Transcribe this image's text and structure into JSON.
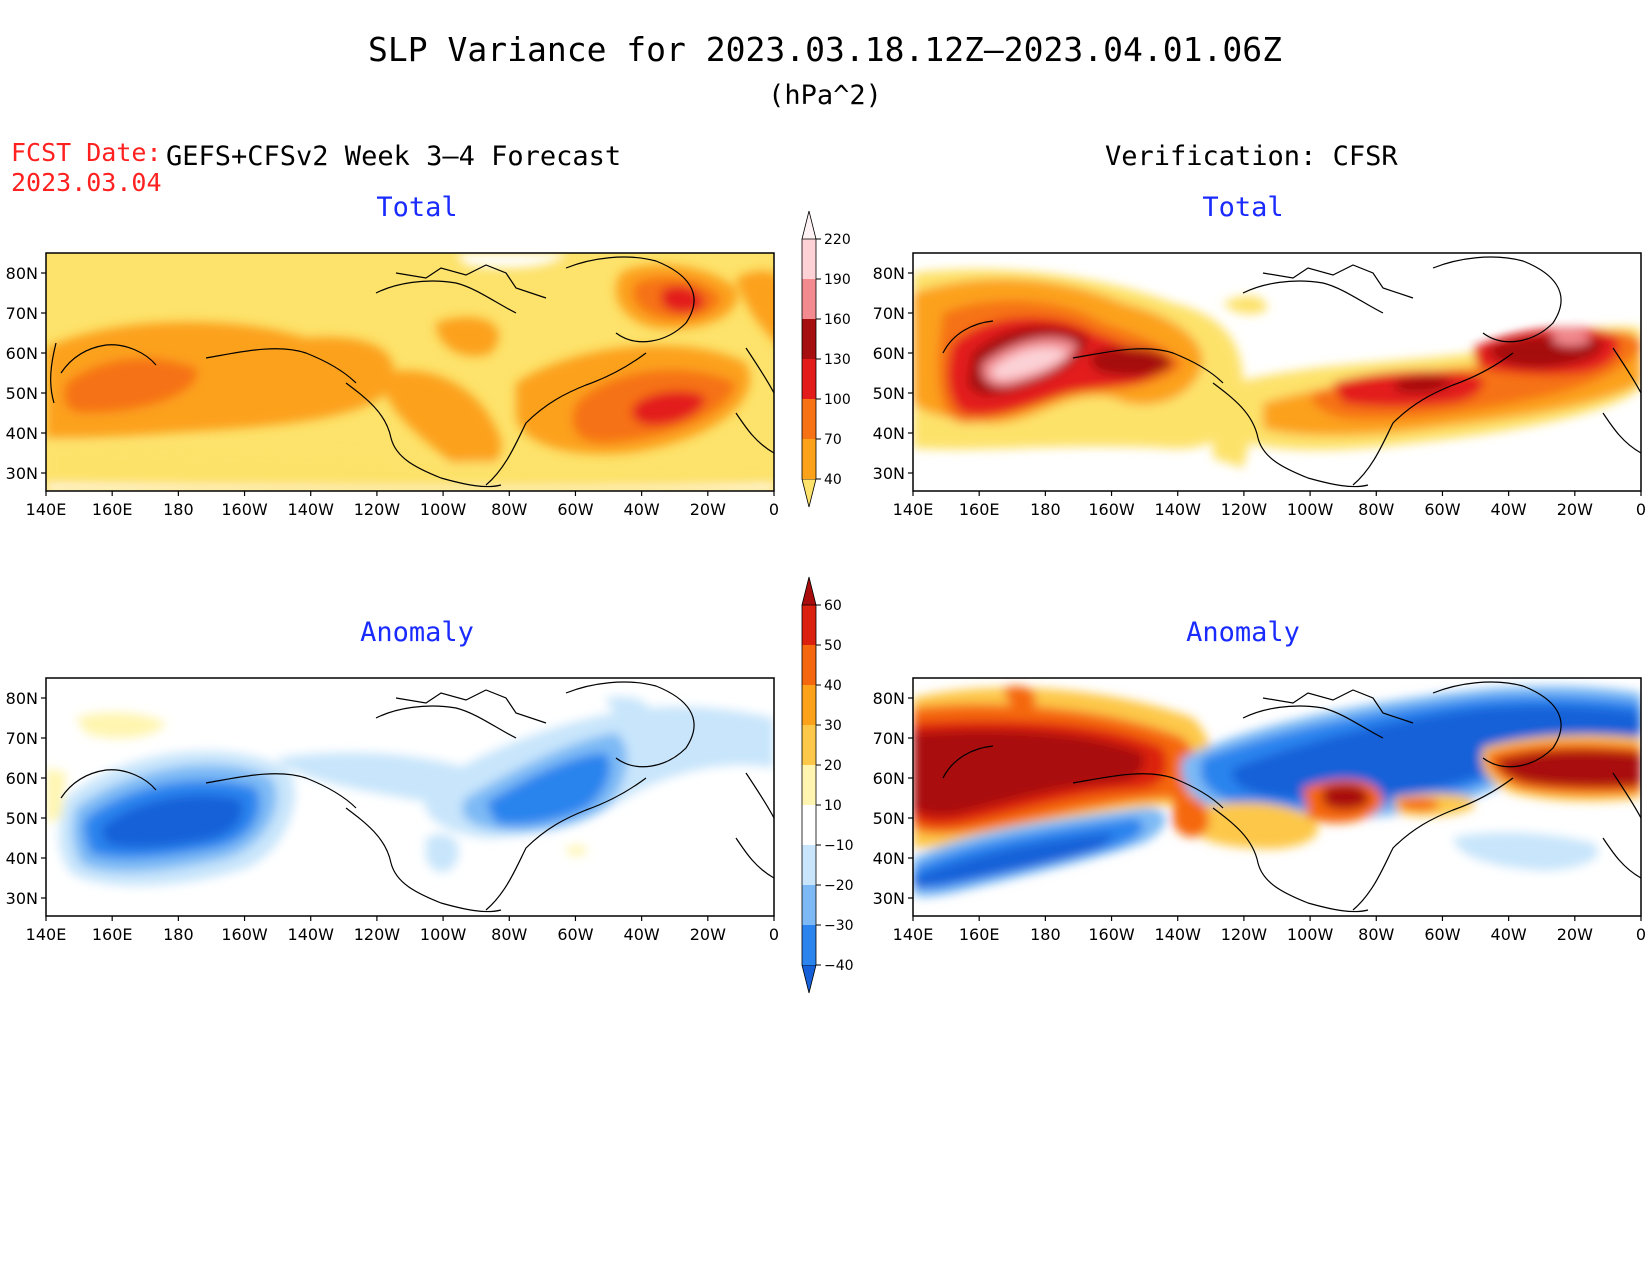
{
  "title": "SLP Variance for 2023.03.18.12Z–2023.04.01.06Z",
  "units": "(hPa^2)",
  "fcst_label": "FCST Date:",
  "fcst_value": "2023.03.04",
  "left_header": "GEFS+CFSv2 Week 3–4 Forecast",
  "right_header": "Verification: CFSR",
  "panels": [
    {
      "title": "Total"
    },
    {
      "title": "Total"
    },
    {
      "title": "Anomaly"
    },
    {
      "title": "Anomaly"
    }
  ],
  "lat_ticks": [
    "80N",
    "70N",
    "60N",
    "50N",
    "40N",
    "30N"
  ],
  "lon_ticks": [
    "140E",
    "160E",
    "180",
    "160W",
    "140W",
    "120W",
    "100W",
    "80W",
    "60W",
    "40W",
    "20W",
    "0"
  ],
  "colorbar_total": {
    "labels": [
      "40",
      "70",
      "100",
      "130",
      "160",
      "190",
      "220"
    ],
    "colors": [
      "#fde26b",
      "#fca11a",
      "#f67214",
      "#e31b1b",
      "#a50f0f",
      "#f28a8f",
      "#fcd2d6",
      "#fff2f4"
    ]
  },
  "colorbar_anomaly": {
    "labels": [
      "−40",
      "−30",
      "−20",
      "−10",
      "10",
      "20",
      "30",
      "40",
      "50",
      "60"
    ],
    "colors": [
      "#1560d8",
      "#2b84ee",
      "#7dbaf5",
      "#c8e5fb",
      "#ffffff",
      "#fff5b0",
      "#fdc84a",
      "#fba21a",
      "#f5670f",
      "#dc2010",
      "#a90c0c"
    ]
  },
  "colors": {
    "title_text": "#000000",
    "fcst_text": "#ff2020",
    "panel_title": "#1a2bff"
  }
}
